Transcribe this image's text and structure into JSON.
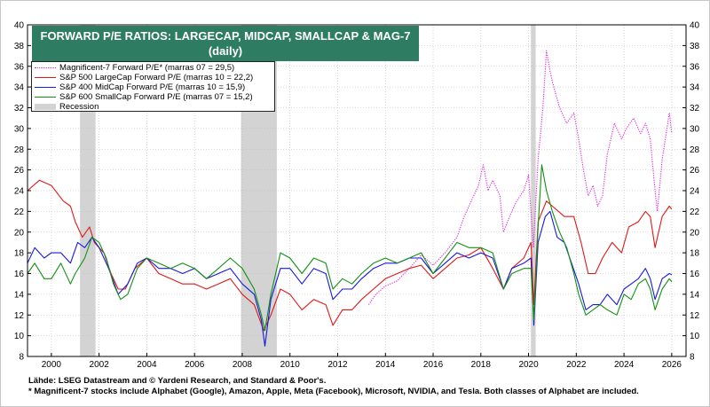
{
  "header": {
    "title_line1": "FORWARD P/E RATIOS: LARGECAP, MIDCAP, SMALLCAP & MAG-7",
    "title_line2": "(daily)"
  },
  "legend": {
    "items": [
      {
        "label": "Magnificent-7 Forward P/E* (marras 07 = 29,5)",
        "color": "#e020e0",
        "style": "dotted"
      },
      {
        "label": "S&P 500 LargeCap Forward P/E (marras 10 = 22,2)",
        "color": "#e01818",
        "style": "solid"
      },
      {
        "label": "S&P 400 MidCap Forward P/E (marras 10 = 15,9)",
        "color": "#1818e0",
        "style": "solid"
      },
      {
        "label": "S&P 600 SmallCap Forward P/E (marras 07 = 15,2)",
        "color": "#129012",
        "style": "solid"
      }
    ],
    "recession_label": "Recession"
  },
  "footer": {
    "source": "Lähde: LSEG Datastream and © Yardeni Research, and Standard & Poor's.",
    "note": "* Magnificent-7 stocks include Alphabet (Google), Amazon, Apple, Meta (Facebook), Microsoft, NVIDIA, and Tesla. Both classes of Alphabet are included."
  },
  "colors": {
    "title_bg": "#2e7d62",
    "recession": "#d3d3d3",
    "grid": "#b8b8b8"
  },
  "chart_data": {
    "type": "line",
    "title": "FORWARD P/E RATIOS: LARGECAP, MIDCAP, SMALLCAP & MAG-7 (daily)",
    "xlabel": "",
    "ylabel": "",
    "xlim": [
      1999,
      2026.6
    ],
    "ylim": [
      8,
      40
    ],
    "x_ticks": [
      2000,
      2002,
      2004,
      2006,
      2008,
      2010,
      2012,
      2014,
      2016,
      2018,
      2020,
      2022,
      2024,
      2026
    ],
    "y_ticks": [
      8,
      10,
      12,
      14,
      16,
      18,
      20,
      22,
      24,
      26,
      28,
      30,
      32,
      34,
      36,
      38,
      40
    ],
    "grid": true,
    "recessions": [
      [
        2001.2,
        2001.85
      ],
      [
        2007.95,
        2009.45
      ],
      [
        2020.1,
        2020.3
      ]
    ],
    "series": [
      {
        "name": "Magnificent-7 Forward P/E*",
        "color": "#e020e0",
        "style": "dotted",
        "points": [
          [
            2013.3,
            13.0
          ],
          [
            2013.6,
            14.0
          ],
          [
            2014.0,
            14.8
          ],
          [
            2014.5,
            15.3
          ],
          [
            2015.0,
            16.5
          ],
          [
            2015.5,
            17.8
          ],
          [
            2016.0,
            16.8
          ],
          [
            2016.5,
            18.0
          ],
          [
            2017.0,
            19.5
          ],
          [
            2017.3,
            21.5
          ],
          [
            2017.6,
            23.0
          ],
          [
            2017.9,
            24.5
          ],
          [
            2018.1,
            26.5
          ],
          [
            2018.3,
            24.0
          ],
          [
            2018.5,
            25.0
          ],
          [
            2018.8,
            23.5
          ],
          [
            2018.95,
            20.0
          ],
          [
            2019.2,
            21.5
          ],
          [
            2019.5,
            23.0
          ],
          [
            2019.8,
            24.0
          ],
          [
            2020.0,
            25.5
          ],
          [
            2020.2,
            18.5
          ],
          [
            2020.4,
            27.0
          ],
          [
            2020.6,
            32.0
          ],
          [
            2020.75,
            37.5
          ],
          [
            2020.9,
            35.5
          ],
          [
            2021.0,
            34.5
          ],
          [
            2021.3,
            32.0
          ],
          [
            2021.6,
            30.5
          ],
          [
            2021.9,
            31.5
          ],
          [
            2022.1,
            29.0
          ],
          [
            2022.3,
            26.0
          ],
          [
            2022.5,
            23.5
          ],
          [
            2022.7,
            24.5
          ],
          [
            2022.9,
            22.5
          ],
          [
            2023.1,
            23.5
          ],
          [
            2023.3,
            27.5
          ],
          [
            2023.6,
            30.5
          ],
          [
            2023.9,
            29.0
          ],
          [
            2024.1,
            30.0
          ],
          [
            2024.4,
            31.0
          ],
          [
            2024.7,
            29.5
          ],
          [
            2024.9,
            30.5
          ],
          [
            2025.1,
            29.0
          ],
          [
            2025.3,
            24.0
          ],
          [
            2025.4,
            22.0
          ],
          [
            2025.6,
            27.0
          ],
          [
            2025.8,
            30.0
          ],
          [
            2025.9,
            31.5
          ],
          [
            2026.0,
            29.5
          ]
        ]
      },
      {
        "name": "S&P 500 LargeCap Forward P/E",
        "color": "#e01818",
        "style": "solid",
        "points": [
          [
            1999.0,
            24.0
          ],
          [
            1999.5,
            25.0
          ],
          [
            2000.0,
            24.5
          ],
          [
            2000.5,
            23.0
          ],
          [
            2000.8,
            22.5
          ],
          [
            2001.0,
            21.0
          ],
          [
            2001.3,
            19.5
          ],
          [
            2001.6,
            20.5
          ],
          [
            2001.8,
            19.0
          ],
          [
            2002.2,
            18.0
          ],
          [
            2002.5,
            16.0
          ],
          [
            2002.8,
            14.5
          ],
          [
            2003.1,
            14.5
          ],
          [
            2003.5,
            16.5
          ],
          [
            2004.0,
            17.5
          ],
          [
            2004.5,
            16.0
          ],
          [
            2005.0,
            15.5
          ],
          [
            2005.5,
            15.0
          ],
          [
            2006.0,
            15.0
          ],
          [
            2006.5,
            14.5
          ],
          [
            2007.0,
            15.0
          ],
          [
            2007.5,
            15.5
          ],
          [
            2008.0,
            14.0
          ],
          [
            2008.5,
            13.0
          ],
          [
            2008.9,
            10.5
          ],
          [
            2009.2,
            12.0
          ],
          [
            2009.6,
            14.5
          ],
          [
            2010.0,
            14.0
          ],
          [
            2010.5,
            12.5
          ],
          [
            2011.0,
            13.5
          ],
          [
            2011.5,
            13.0
          ],
          [
            2011.8,
            11.0
          ],
          [
            2012.2,
            12.5
          ],
          [
            2012.6,
            12.5
          ],
          [
            2013.0,
            13.5
          ],
          [
            2013.5,
            14.5
          ],
          [
            2014.0,
            15.5
          ],
          [
            2014.5,
            16.0
          ],
          [
            2015.0,
            16.5
          ],
          [
            2015.5,
            16.8
          ],
          [
            2016.0,
            15.5
          ],
          [
            2016.5,
            16.5
          ],
          [
            2017.0,
            17.5
          ],
          [
            2017.5,
            17.8
          ],
          [
            2018.0,
            18.5
          ],
          [
            2018.5,
            16.5
          ],
          [
            2018.95,
            14.5
          ],
          [
            2019.3,
            16.5
          ],
          [
            2019.8,
            17.5
          ],
          [
            2020.1,
            19.0
          ],
          [
            2020.22,
            13.0
          ],
          [
            2020.4,
            21.0
          ],
          [
            2020.75,
            23.0
          ],
          [
            2021.0,
            22.5
          ],
          [
            2021.5,
            21.5
          ],
          [
            2021.9,
            21.5
          ],
          [
            2022.2,
            19.0
          ],
          [
            2022.5,
            16.0
          ],
          [
            2022.8,
            16.0
          ],
          [
            2023.1,
            17.5
          ],
          [
            2023.5,
            19.0
          ],
          [
            2023.9,
            18.0
          ],
          [
            2024.2,
            20.5
          ],
          [
            2024.6,
            21.0
          ],
          [
            2024.9,
            22.0
          ],
          [
            2025.1,
            21.5
          ],
          [
            2025.3,
            18.5
          ],
          [
            2025.6,
            21.5
          ],
          [
            2025.9,
            22.5
          ],
          [
            2026.0,
            22.2
          ]
        ]
      },
      {
        "name": "S&P 400 MidCap Forward P/E",
        "color": "#1818e0",
        "style": "solid",
        "points": [
          [
            1999.0,
            17.0
          ],
          [
            1999.3,
            18.5
          ],
          [
            1999.7,
            17.5
          ],
          [
            2000.0,
            18.0
          ],
          [
            2000.4,
            18.0
          ],
          [
            2000.8,
            17.0
          ],
          [
            2001.1,
            19.0
          ],
          [
            2001.4,
            18.5
          ],
          [
            2001.7,
            19.5
          ],
          [
            2002.0,
            18.5
          ],
          [
            2002.4,
            16.5
          ],
          [
            2002.8,
            14.0
          ],
          [
            2003.2,
            15.0
          ],
          [
            2003.6,
            17.0
          ],
          [
            2004.0,
            17.5
          ],
          [
            2004.5,
            16.5
          ],
          [
            2005.0,
            16.5
          ],
          [
            2005.5,
            16.0
          ],
          [
            2006.0,
            16.5
          ],
          [
            2006.5,
            15.5
          ],
          [
            2007.0,
            16.0
          ],
          [
            2007.5,
            16.5
          ],
          [
            2008.0,
            15.0
          ],
          [
            2008.5,
            14.0
          ],
          [
            2008.8,
            11.5
          ],
          [
            2008.95,
            9.0
          ],
          [
            2009.2,
            13.5
          ],
          [
            2009.6,
            16.5
          ],
          [
            2010.0,
            16.5
          ],
          [
            2010.5,
            15.0
          ],
          [
            2011.0,
            16.5
          ],
          [
            2011.5,
            16.0
          ],
          [
            2011.8,
            13.5
          ],
          [
            2012.2,
            14.5
          ],
          [
            2012.6,
            14.5
          ],
          [
            2013.0,
            15.5
          ],
          [
            2013.5,
            16.5
          ],
          [
            2014.0,
            17.0
          ],
          [
            2014.5,
            17.0
          ],
          [
            2015.0,
            17.5
          ],
          [
            2015.5,
            17.5
          ],
          [
            2016.0,
            16.0
          ],
          [
            2016.5,
            17.0
          ],
          [
            2017.0,
            18.0
          ],
          [
            2017.5,
            17.5
          ],
          [
            2018.0,
            18.0
          ],
          [
            2018.5,
            17.5
          ],
          [
            2018.95,
            14.5
          ],
          [
            2019.3,
            16.5
          ],
          [
            2019.8,
            17.0
          ],
          [
            2020.1,
            17.5
          ],
          [
            2020.22,
            11.0
          ],
          [
            2020.4,
            19.0
          ],
          [
            2020.7,
            21.5
          ],
          [
            2020.9,
            22.0
          ],
          [
            2021.2,
            19.5
          ],
          [
            2021.5,
            19.0
          ],
          [
            2021.8,
            17.0
          ],
          [
            2022.1,
            15.0
          ],
          [
            2022.4,
            12.5
          ],
          [
            2022.7,
            13.0
          ],
          [
            2023.0,
            13.0
          ],
          [
            2023.3,
            14.0
          ],
          [
            2023.7,
            13.0
          ],
          [
            2024.0,
            14.5
          ],
          [
            2024.3,
            15.0
          ],
          [
            2024.6,
            15.5
          ],
          [
            2024.9,
            16.5
          ],
          [
            2025.1,
            15.5
          ],
          [
            2025.3,
            13.5
          ],
          [
            2025.6,
            15.5
          ],
          [
            2025.9,
            16.0
          ],
          [
            2026.0,
            15.9
          ]
        ]
      },
      {
        "name": "S&P 600 SmallCap Forward P/E",
        "color": "#129012",
        "style": "solid",
        "points": [
          [
            1999.0,
            16.0
          ],
          [
            1999.3,
            17.0
          ],
          [
            1999.7,
            15.5
          ],
          [
            2000.0,
            15.5
          ],
          [
            2000.4,
            17.0
          ],
          [
            2000.8,
            15.0
          ],
          [
            2001.0,
            16.0
          ],
          [
            2001.4,
            17.5
          ],
          [
            2001.7,
            19.5
          ],
          [
            2002.0,
            19.0
          ],
          [
            2002.3,
            17.5
          ],
          [
            2002.6,
            15.0
          ],
          [
            2002.9,
            13.5
          ],
          [
            2003.2,
            14.0
          ],
          [
            2003.6,
            16.5
          ],
          [
            2004.0,
            17.5
          ],
          [
            2004.5,
            17.0
          ],
          [
            2005.0,
            16.5
          ],
          [
            2005.5,
            17.0
          ],
          [
            2006.0,
            16.5
          ],
          [
            2006.5,
            15.5
          ],
          [
            2007.0,
            16.5
          ],
          [
            2007.5,
            17.5
          ],
          [
            2008.0,
            16.5
          ],
          [
            2008.5,
            14.5
          ],
          [
            2008.8,
            12.0
          ],
          [
            2008.95,
            10.5
          ],
          [
            2009.2,
            14.0
          ],
          [
            2009.6,
            18.0
          ],
          [
            2010.0,
            17.5
          ],
          [
            2010.5,
            16.0
          ],
          [
            2011.0,
            17.5
          ],
          [
            2011.5,
            17.0
          ],
          [
            2011.8,
            14.5
          ],
          [
            2012.2,
            15.5
          ],
          [
            2012.6,
            15.0
          ],
          [
            2013.0,
            16.0
          ],
          [
            2013.5,
            17.0
          ],
          [
            2014.0,
            17.5
          ],
          [
            2014.5,
            17.0
          ],
          [
            2015.0,
            17.5
          ],
          [
            2015.5,
            18.0
          ],
          [
            2016.0,
            16.0
          ],
          [
            2016.5,
            17.5
          ],
          [
            2017.0,
            19.0
          ],
          [
            2017.5,
            18.5
          ],
          [
            2018.0,
            18.5
          ],
          [
            2018.5,
            18.0
          ],
          [
            2018.95,
            14.5
          ],
          [
            2019.3,
            16.0
          ],
          [
            2019.8,
            16.5
          ],
          [
            2020.1,
            16.5
          ],
          [
            2020.22,
            11.5
          ],
          [
            2020.4,
            20.5
          ],
          [
            2020.55,
            26.5
          ],
          [
            2020.75,
            24.0
          ],
          [
            2021.0,
            22.0
          ],
          [
            2021.3,
            20.0
          ],
          [
            2021.6,
            18.5
          ],
          [
            2021.9,
            16.0
          ],
          [
            2022.1,
            14.0
          ],
          [
            2022.4,
            12.0
          ],
          [
            2022.7,
            12.5
          ],
          [
            2023.0,
            13.0
          ],
          [
            2023.3,
            12.5
          ],
          [
            2023.7,
            12.0
          ],
          [
            2024.0,
            14.0
          ],
          [
            2024.3,
            13.5
          ],
          [
            2024.6,
            15.0
          ],
          [
            2024.9,
            15.5
          ],
          [
            2025.1,
            14.5
          ],
          [
            2025.3,
            12.5
          ],
          [
            2025.6,
            14.5
          ],
          [
            2025.9,
            15.5
          ],
          [
            2026.0,
            15.2
          ]
        ]
      }
    ]
  }
}
